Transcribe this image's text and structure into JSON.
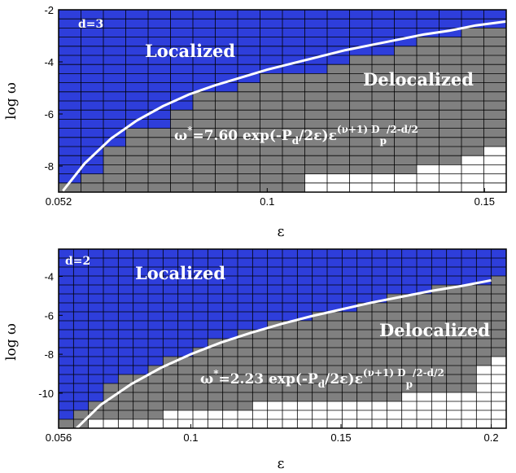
{
  "colors": {
    "localized": "#2e3edb",
    "delocalized": "#808080",
    "empty": "#ffffff",
    "grid": "#000000",
    "curve": "#ffffff"
  },
  "chart_data": [
    {
      "type": "heatmap",
      "panel_label": "d=3",
      "xlabel": "ε",
      "ylabel": "log ω",
      "xlim": [
        0.052,
        0.155
      ],
      "ylim": [
        -9,
        -2
      ],
      "xticks": [
        0.052,
        0.1,
        0.15
      ],
      "xtick_labels": [
        "0.052",
        "0.1",
        "0.15"
      ],
      "yticks": [
        -8,
        -6,
        -4,
        -2
      ],
      "ytick_labels": [
        "-8",
        "-6",
        "-4",
        "-2"
      ],
      "grid_cols": 20,
      "grid_rows": 20,
      "region_labels": {
        "localized": "Localized",
        "delocalized": "Delocalized"
      },
      "formula": {
        "lead": "ω",
        "star": "*",
        "main": "=7.60 exp(-P",
        "sub_d": "d",
        "mid": "/2ε)ε",
        "sup_exp": "(ν+1) D",
        "sub_p": "p",
        "tail": "/2-d/2"
      },
      "localized_top_by_col": [
        -8.65,
        -8.3,
        -7.25,
        -6.55,
        -6.55,
        -5.85,
        -5.15,
        -5.15,
        -4.8,
        -4.45,
        -4.45,
        -4.45,
        -4.1,
        -3.75,
        -3.75,
        -3.4,
        -3.05,
        -3.05,
        -2.7,
        -2.7
      ],
      "white_top_by_col": [
        -9,
        -9,
        -9,
        -9,
        -9,
        -9,
        -9,
        -9,
        -9,
        -9,
        -9,
        -8.3,
        -8.3,
        -8.3,
        -8.3,
        -8.3,
        -7.95,
        -7.95,
        -7.6,
        -7.25
      ],
      "boundary_curve": {
        "x": [
          0.053,
          0.058,
          0.064,
          0.07,
          0.076,
          0.082,
          0.088,
          0.094,
          0.1,
          0.106,
          0.112,
          0.118,
          0.124,
          0.13,
          0.136,
          0.142,
          0.148,
          0.155
        ],
        "y": [
          -8.95,
          -7.9,
          -6.95,
          -6.25,
          -5.7,
          -5.25,
          -4.9,
          -4.6,
          -4.3,
          -4.05,
          -3.8,
          -3.55,
          -3.35,
          -3.15,
          -2.95,
          -2.8,
          -2.6,
          -2.45
        ]
      }
    },
    {
      "type": "heatmap",
      "panel_label": "d=2",
      "xlabel": "ε",
      "ylabel": "log ω",
      "xlim": [
        0.056,
        0.205
      ],
      "ylim": [
        -11.8,
        -2.6
      ],
      "xticks": [
        0.056,
        0.1,
        0.15,
        0.2
      ],
      "xtick_labels": [
        "0.056",
        "0.1",
        "0.15",
        "0.2"
      ],
      "yticks": [
        -10,
        -8,
        -6,
        -4
      ],
      "ytick_labels": [
        "-10",
        "-8",
        "-6",
        "-4"
      ],
      "grid_cols": 30,
      "grid_rows": 20,
      "region_labels": {
        "localized": "Localized",
        "delocalized": "Delocalized"
      },
      "formula": {
        "lead": "ω",
        "star": "*",
        "main": "=2.23 exp(-P",
        "sub_d": "d",
        "mid": "/2ε)ε",
        "sup_exp": "(ν+1) D",
        "sub_p": "p",
        "tail": "/2-d/2"
      },
      "localized_top_by_col": [
        -11.34,
        -10.88,
        -10.42,
        -9.5,
        -9.04,
        -9.04,
        -8.58,
        -8.12,
        -8.12,
        -7.66,
        -7.2,
        -7.2,
        -6.74,
        -6.74,
        -6.28,
        -6.28,
        -6.28,
        -5.82,
        -5.82,
        -5.82,
        -5.36,
        -5.36,
        -4.9,
        -4.9,
        -4.9,
        -4.44,
        -4.44,
        -4.44,
        -4.44,
        -3.98
      ],
      "white_top_by_col": [
        -11.8,
        -11.8,
        -11.34,
        -11.34,
        -11.34,
        -11.34,
        -11.34,
        -10.88,
        -10.88,
        -10.88,
        -10.88,
        -10.88,
        -10.88,
        -10.42,
        -10.42,
        -10.42,
        -10.42,
        -10.42,
        -10.42,
        -10.42,
        -10.42,
        -10.42,
        -10.42,
        -9.96,
        -9.96,
        -9.96,
        -9.96,
        -9.96,
        -8.58,
        -8.12
      ],
      "boundary_curve": {
        "x": [
          0.062,
          0.07,
          0.08,
          0.09,
          0.1,
          0.11,
          0.12,
          0.13,
          0.14,
          0.15,
          0.16,
          0.17,
          0.18,
          0.19,
          0.2
        ],
        "y": [
          -11.8,
          -10.6,
          -9.55,
          -8.7,
          -8.0,
          -7.4,
          -6.9,
          -6.45,
          -6.05,
          -5.7,
          -5.35,
          -5.05,
          -4.75,
          -4.5,
          -4.2
        ]
      }
    }
  ]
}
